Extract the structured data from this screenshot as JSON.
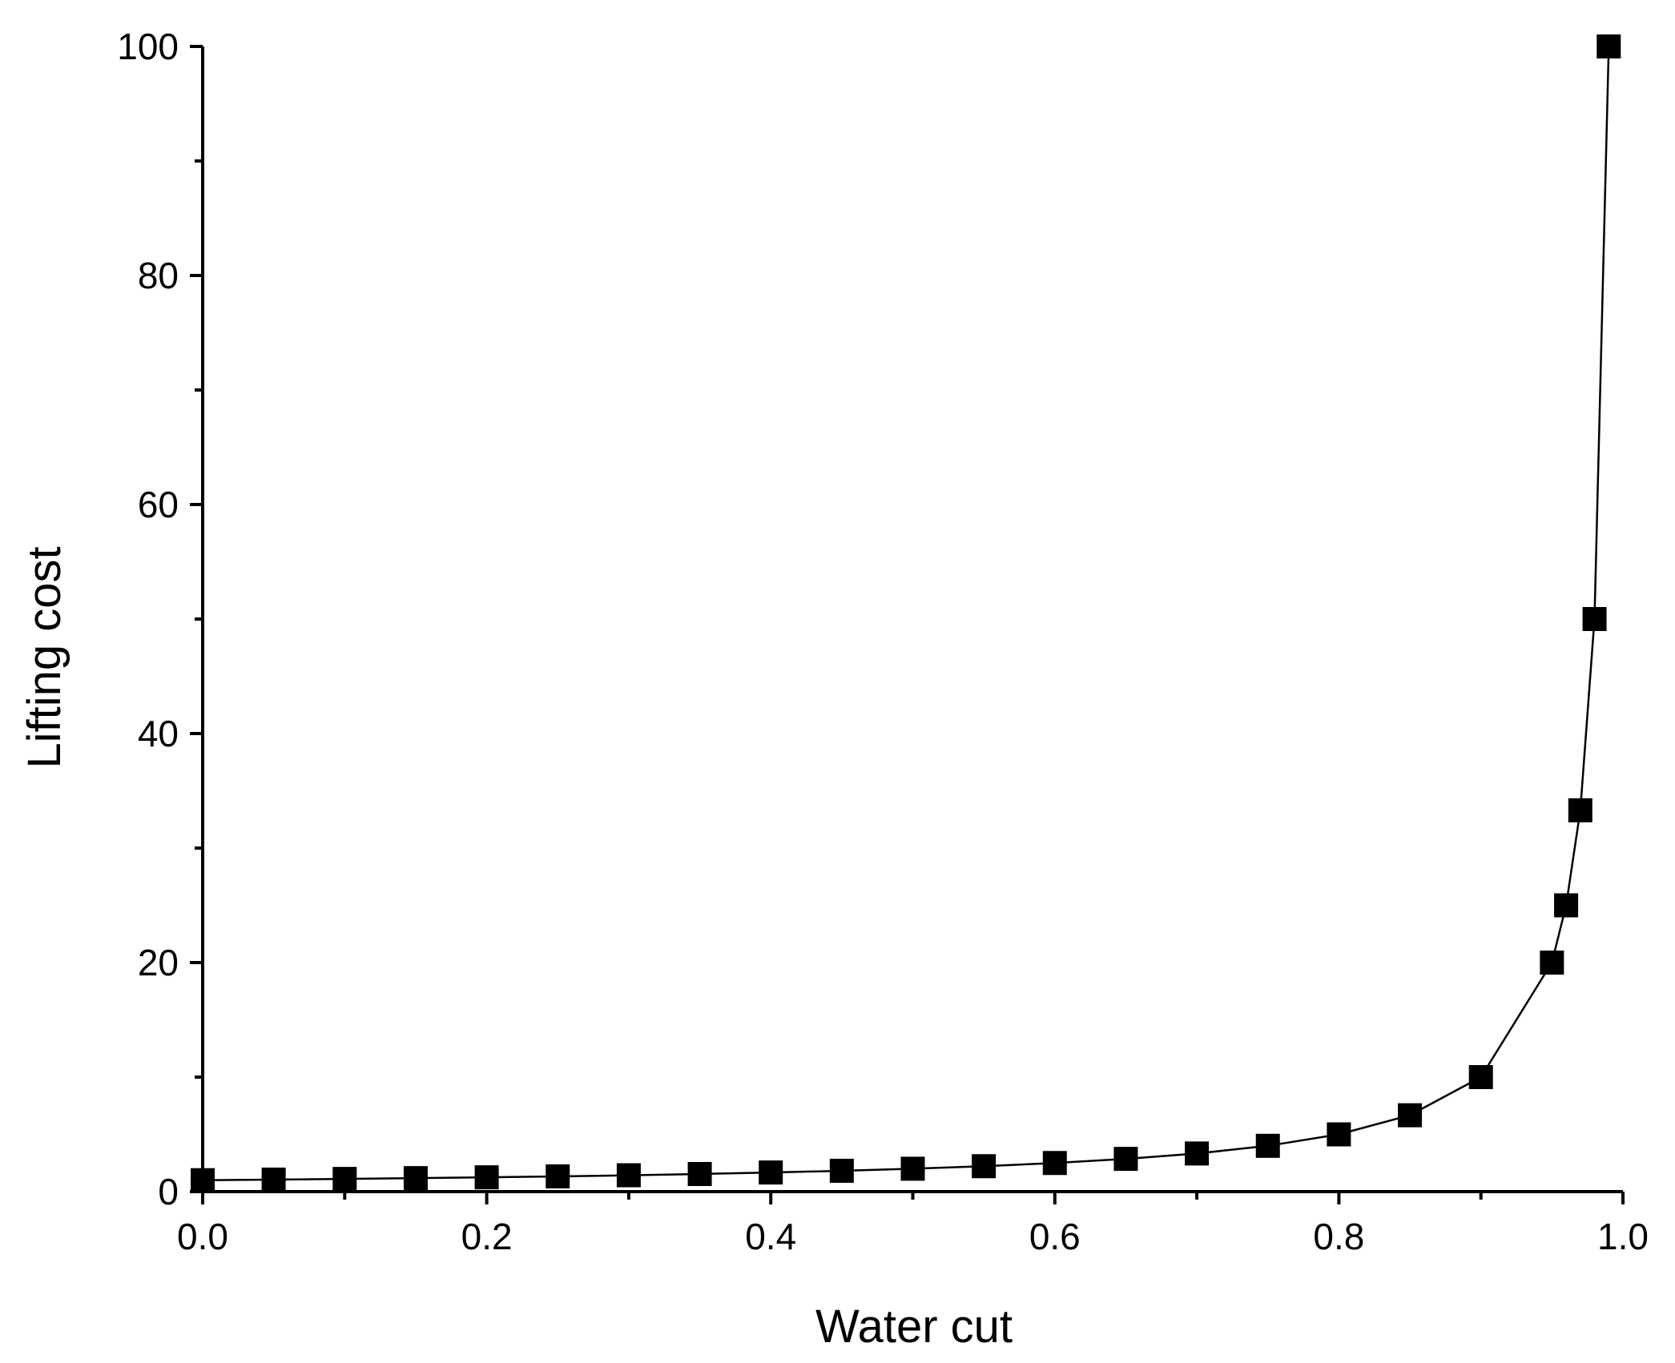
{
  "chart_data": {
    "type": "line",
    "title": "",
    "xlabel": "Water cut",
    "ylabel": "Lifting cost",
    "xlim": [
      0,
      1.0
    ],
    "ylim": [
      0,
      100
    ],
    "x_ticks": [
      "0.0",
      "0.2",
      "0.4",
      "0.6",
      "0.8",
      "1.0"
    ],
    "y_ticks": [
      "0",
      "20",
      "40",
      "60",
      "80",
      "100"
    ],
    "grid": false,
    "legend": null,
    "series": [
      {
        "name": "Lifting cost",
        "marker": "square",
        "color": "#000000",
        "x": [
          0.0,
          0.05,
          0.1,
          0.15,
          0.2,
          0.25,
          0.3,
          0.35,
          0.4,
          0.45,
          0.5,
          0.55,
          0.6,
          0.65,
          0.7,
          0.75,
          0.8,
          0.85,
          0.9,
          0.95,
          0.96,
          0.97,
          0.98,
          0.99
        ],
        "y": [
          1.0,
          1.05,
          1.11,
          1.18,
          1.25,
          1.33,
          1.43,
          1.54,
          1.67,
          1.82,
          2.0,
          2.22,
          2.5,
          2.86,
          3.33,
          4.0,
          5.0,
          6.67,
          10.0,
          20.0,
          25.0,
          33.3,
          50.0,
          100.0
        ]
      }
    ]
  }
}
